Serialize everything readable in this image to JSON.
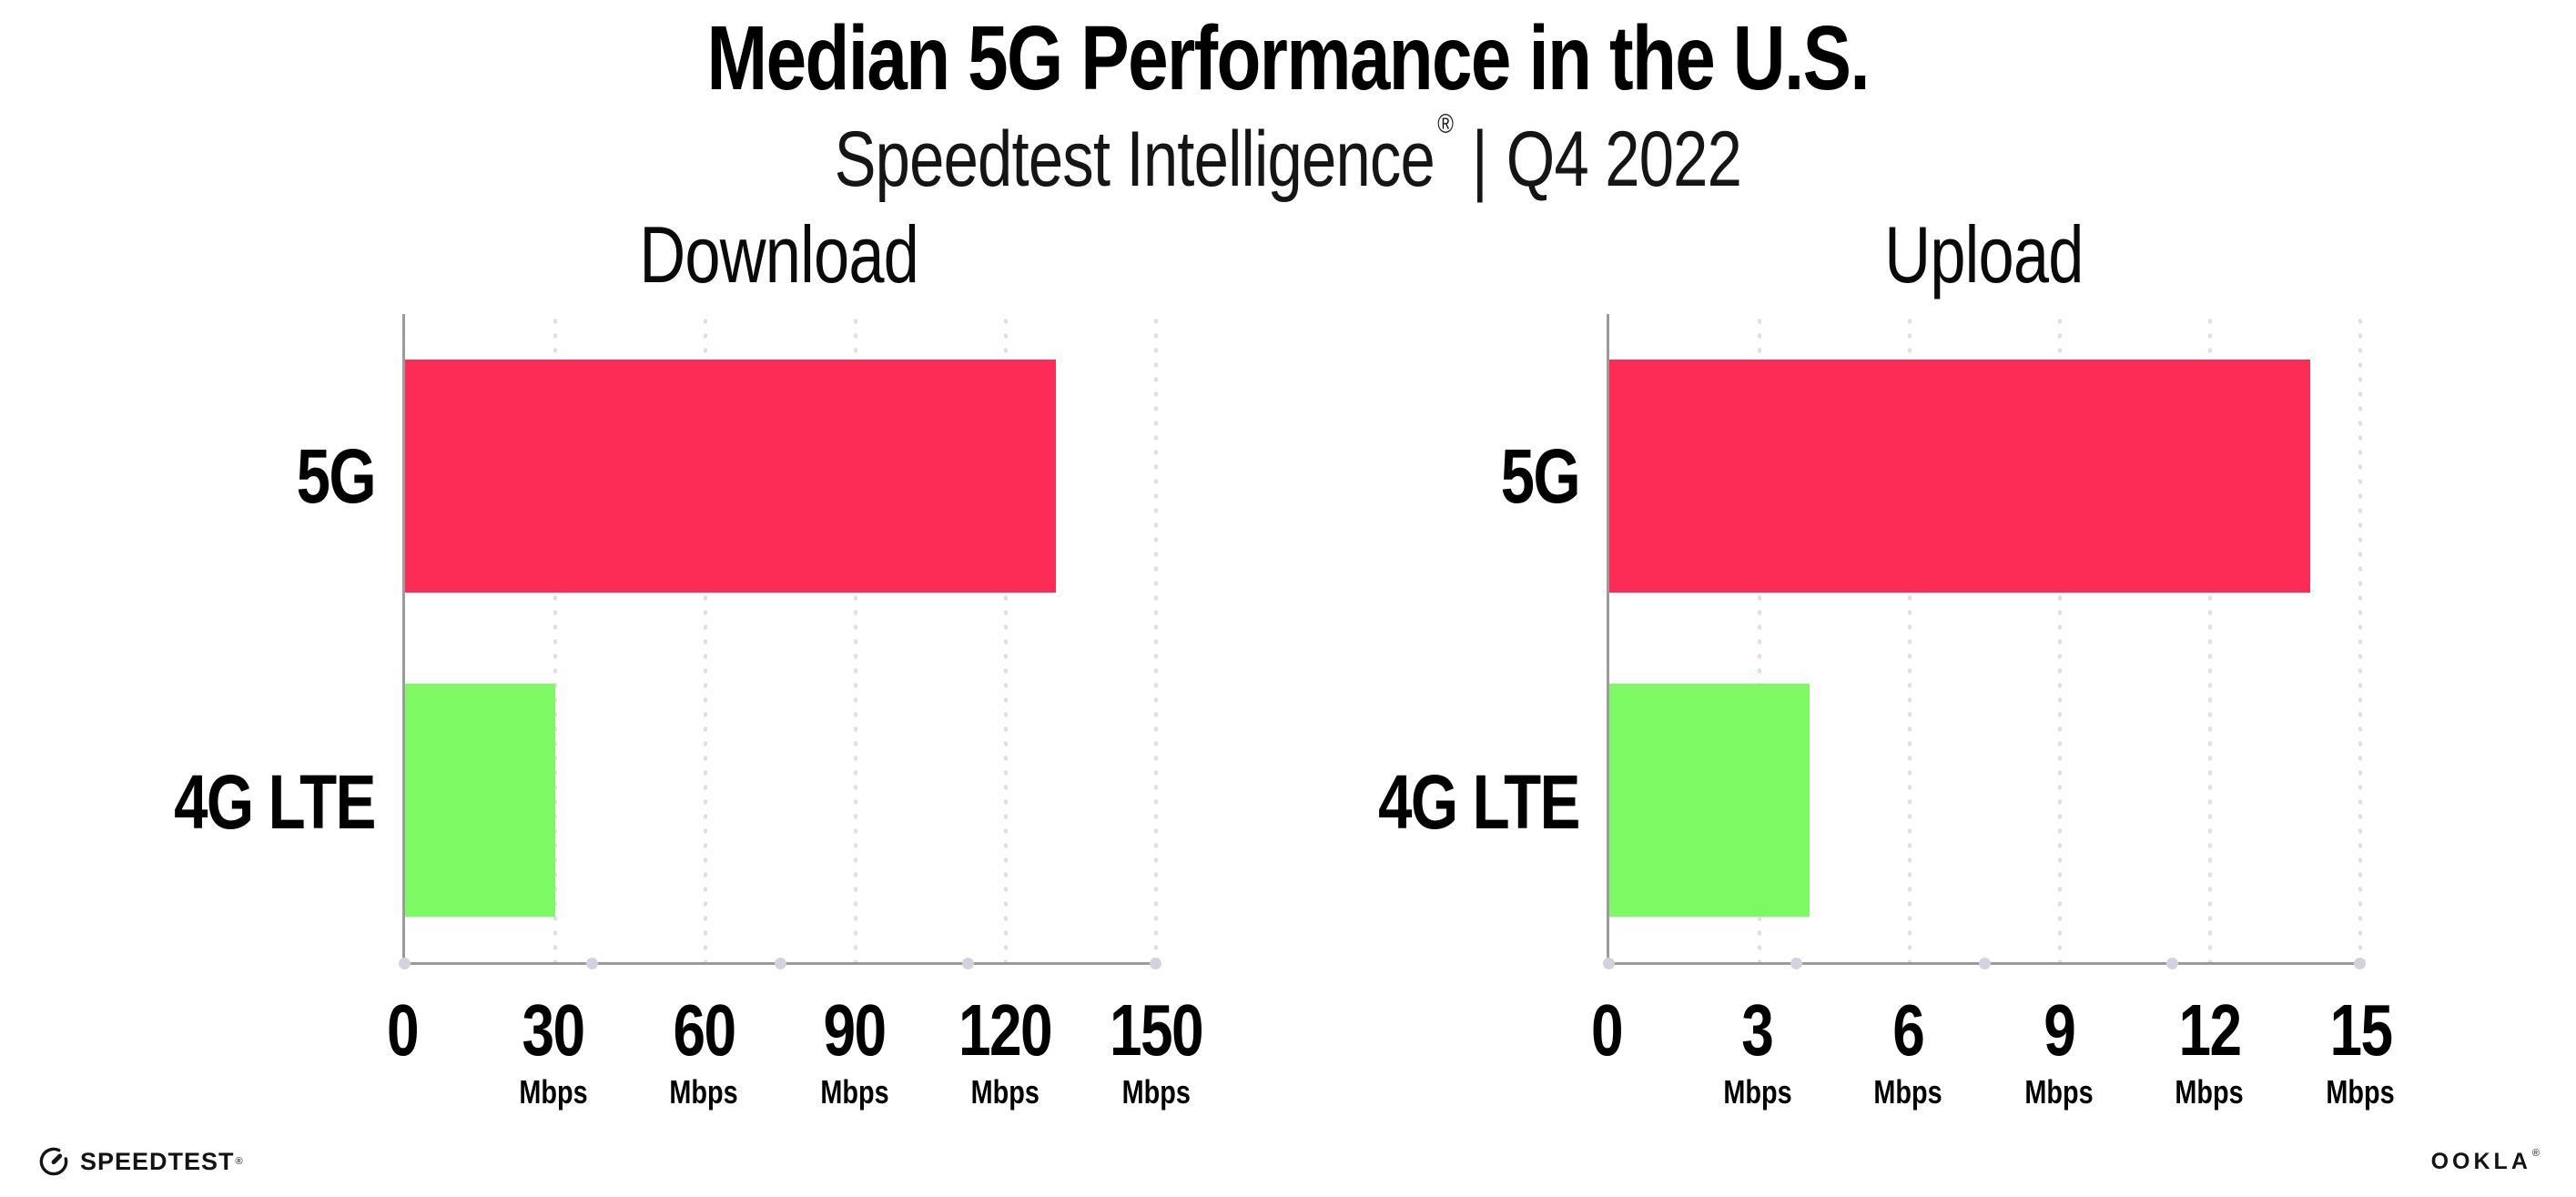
{
  "header": {
    "title": "Median 5G Performance in the U.S.",
    "subtitle_brand": "Speedtest Intelligence",
    "subtitle_registered": "®",
    "subtitle_separator": "|",
    "subtitle_period": "Q4 2022"
  },
  "chart_data": [
    {
      "type": "bar",
      "orientation": "horizontal",
      "title": "Download",
      "categories": [
        "5G",
        "4G LTE"
      ],
      "values": [
        130,
        30
      ],
      "unit": "Mbps",
      "xlim": [
        0,
        150
      ],
      "xticks": [
        0,
        30,
        60,
        90,
        120,
        150
      ],
      "tick_unit_label": "Mbps",
      "bar_colors": [
        "#fd2c57",
        "#7dfa63"
      ],
      "grid": "vertical-dotted",
      "legend": "none",
      "xlabel": "",
      "ylabel": ""
    },
    {
      "type": "bar",
      "orientation": "horizontal",
      "title": "Upload",
      "categories": [
        "5G",
        "4G LTE"
      ],
      "values": [
        14,
        4
      ],
      "unit": "Mbps",
      "xlim": [
        0,
        15
      ],
      "xticks": [
        0,
        3,
        6,
        9,
        12,
        15
      ],
      "tick_unit_label": "Mbps",
      "bar_colors": [
        "#fd2c57",
        "#7dfa63"
      ],
      "grid": "vertical-dotted",
      "legend": "none",
      "xlabel": "",
      "ylabel": ""
    }
  ],
  "colors": {
    "bar_5g": "#fd2c57",
    "bar_4g_lte": "#7dfa63",
    "axis": "#9b9b9b",
    "gridline": "#dfdfea",
    "axis_dots": "#d3d3df",
    "text": "#000000"
  },
  "footer": {
    "speedtest_label": "SPEEDTEST",
    "speedtest_registered": "®",
    "ookla_label": "OOKLA",
    "ookla_registered": "®"
  }
}
